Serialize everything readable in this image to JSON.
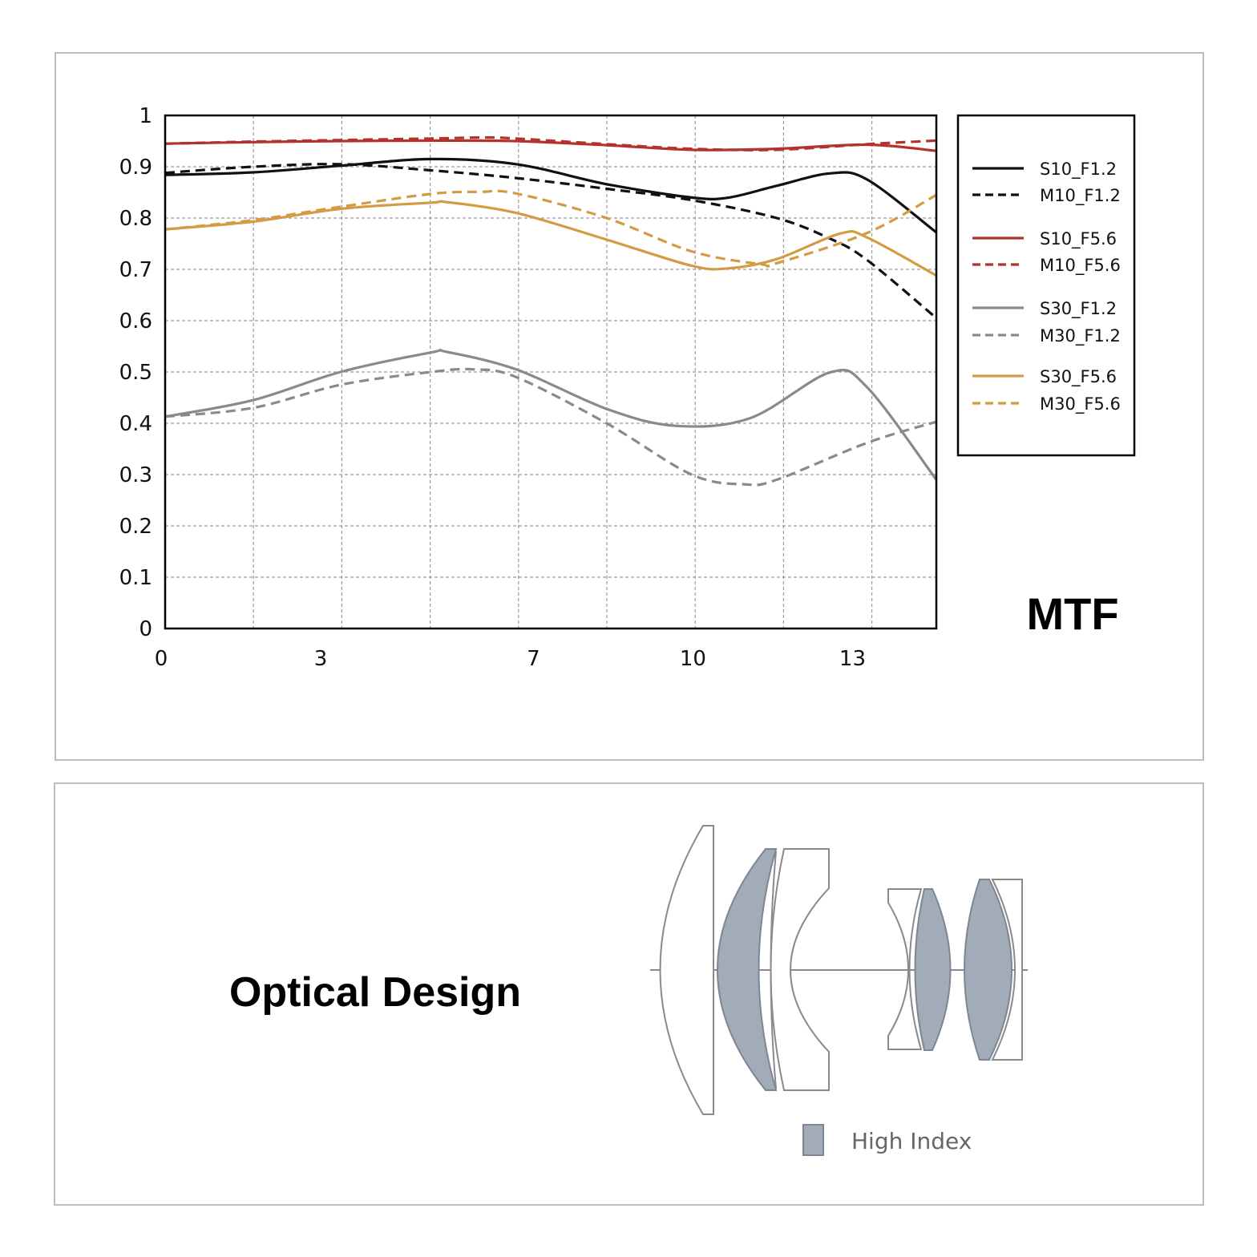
{
  "chart_data": {
    "type": "line",
    "title": "MTF",
    "xlabel": "",
    "ylabel": "",
    "xlim": [
      0,
      14.5
    ],
    "ylim": [
      0,
      1
    ],
    "xticks": [
      0,
      3,
      7,
      10,
      13
    ],
    "yticks": [
      0,
      0.1,
      0.2,
      0.3,
      0.4,
      0.5,
      0.6,
      0.7,
      0.8,
      0.9,
      1
    ],
    "ytick_labels": [
      "0",
      "0.1",
      "0.2",
      "0.3",
      "0.4",
      "0.5",
      "0.6",
      "0.7",
      "0.8",
      "0.9",
      "1"
    ],
    "grid": true,
    "legend_position": "right",
    "series": [
      {
        "name": "S10_F1.2",
        "color": "#111111",
        "dash": false,
        "x": [
          0,
          1.65,
          3.3,
          5,
          6.6,
          8.3,
          9.9,
          10.6,
          11.5,
          12.5,
          13.2,
          14.5
        ],
        "y": [
          0.884,
          0.889,
          0.902,
          0.915,
          0.905,
          0.866,
          0.84,
          0.84,
          0.863,
          0.887,
          0.875,
          0.772
        ]
      },
      {
        "name": "M10_F1.2",
        "color": "#111111",
        "dash": true,
        "x": [
          0,
          1.65,
          3.3,
          5,
          6.6,
          8.3,
          9.9,
          11.5,
          12.5,
          13.2,
          14.5
        ],
        "y": [
          0.888,
          0.9,
          0.905,
          0.893,
          0.878,
          0.857,
          0.835,
          0.8,
          0.76,
          0.718,
          0.605
        ]
      },
      {
        "name": "S10_F5.6",
        "color": "#b5312b",
        "dash": false,
        "x": [
          0,
          1.65,
          3.3,
          5,
          6.6,
          8.3,
          9.9,
          11.5,
          13.2,
          14.5
        ],
        "y": [
          0.945,
          0.948,
          0.95,
          0.951,
          0.95,
          0.942,
          0.933,
          0.935,
          0.943,
          0.931
        ]
      },
      {
        "name": "M10_F5.6",
        "color": "#b5312b",
        "dash": true,
        "x": [
          0,
          1.65,
          3.3,
          5,
          6,
          6.6,
          8.3,
          9.9,
          11.5,
          13.2,
          14.5
        ],
        "y": [
          0.945,
          0.949,
          0.952,
          0.955,
          0.957,
          0.955,
          0.944,
          0.935,
          0.933,
          0.944,
          0.951
        ]
      },
      {
        "name": "S30_F1.2",
        "color": "#8a8a8a",
        "dash": false,
        "x": [
          0,
          1.65,
          3.3,
          5,
          5.3,
          6.6,
          8.3,
          9.6,
          11,
          12.5,
          13.2,
          14.5
        ],
        "y": [
          0.413,
          0.445,
          0.5,
          0.538,
          0.539,
          0.505,
          0.428,
          0.395,
          0.41,
          0.499,
          0.47,
          0.29
        ]
      },
      {
        "name": "M30_F1.2",
        "color": "#8a8a8a",
        "dash": true,
        "x": [
          0,
          1.65,
          3.3,
          5,
          5.8,
          6.6,
          8.3,
          9.9,
          10.9,
          11.5,
          13.2,
          14.5
        ],
        "y": [
          0.413,
          0.43,
          0.475,
          0.5,
          0.505,
          0.49,
          0.4,
          0.3,
          0.281,
          0.29,
          0.362,
          0.403
        ]
      },
      {
        "name": "S30_F5.6",
        "color": "#d49b45",
        "dash": false,
        "x": [
          0,
          1.65,
          3.3,
          5,
          5.3,
          6.6,
          8.3,
          9.9,
          10.6,
          11.5,
          12.7,
          13.2,
          14.5
        ],
        "y": [
          0.778,
          0.793,
          0.818,
          0.83,
          0.831,
          0.81,
          0.758,
          0.707,
          0.702,
          0.72,
          0.77,
          0.762,
          0.688
        ]
      },
      {
        "name": "M30_F5.6",
        "color": "#d49b45",
        "dash": true,
        "x": [
          0,
          1.65,
          3.3,
          5,
          5.9,
          6.6,
          8.3,
          9.9,
          11.2,
          11.5,
          13.2,
          14.5
        ],
        "y": [
          0.778,
          0.796,
          0.822,
          0.847,
          0.851,
          0.848,
          0.8,
          0.735,
          0.71,
          0.712,
          0.771,
          0.845
        ]
      }
    ]
  },
  "optical": {
    "title": "Optical Design",
    "legend_label": "High Index",
    "element_color": "#a2acb9",
    "line_color": "#8a8a8a"
  }
}
